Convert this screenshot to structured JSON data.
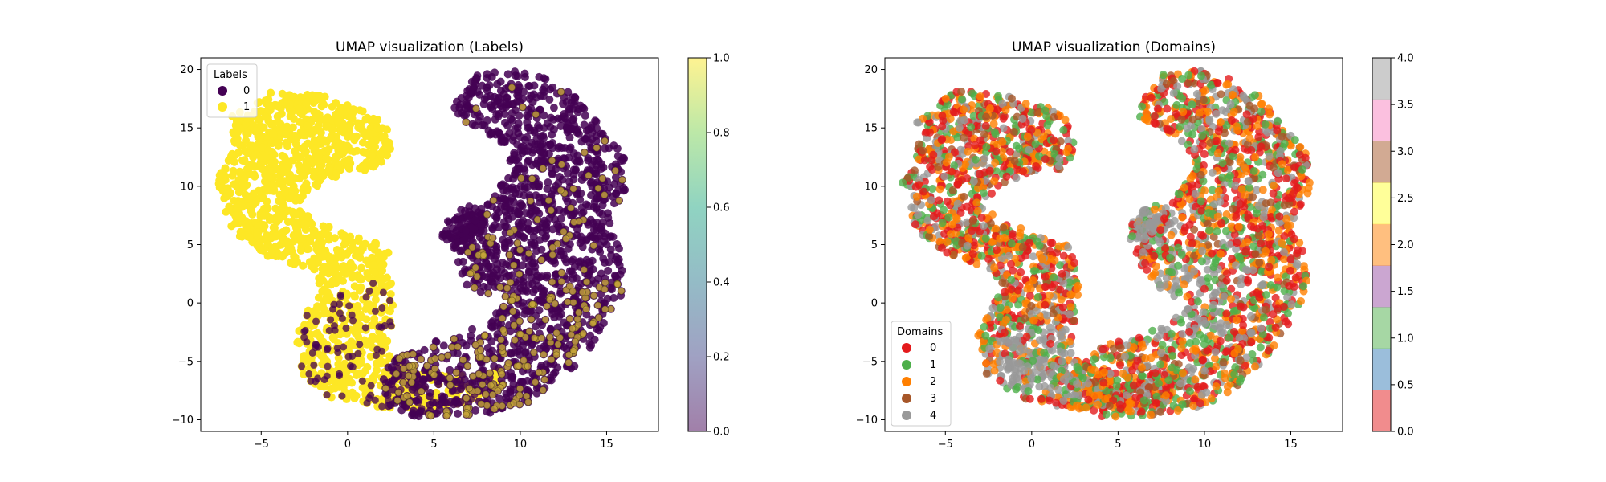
{
  "chart_data": [
    {
      "type": "scatter",
      "title": "UMAP visualization (Labels)",
      "xlabel": "",
      "ylabel": "",
      "xlim": [
        -8.5,
        18
      ],
      "ylim": [
        -11,
        21
      ],
      "xticks": [
        -5,
        0,
        5,
        10,
        15
      ],
      "yticks": [
        -10,
        -5,
        0,
        5,
        10,
        15,
        20
      ],
      "grid": false,
      "legend": {
        "title": "Labels",
        "position": "upper-left",
        "entries": [
          "0",
          "1"
        ]
      },
      "series": [
        {
          "name": "0",
          "color": "#440154",
          "region": "right-arc",
          "outline": [
            [
              6.2,
              17.5
            ],
            [
              7.5,
              19.6
            ],
            [
              9.5,
              20
            ],
            [
              11.5,
              19.3
            ],
            [
              13.3,
              17.6
            ],
            [
              14.8,
              15
            ],
            [
              16.1,
              12.5
            ],
            [
              16.1,
              9.5
            ],
            [
              15.2,
              7
            ],
            [
              15.8,
              4.5
            ],
            [
              16,
              1
            ],
            [
              15.2,
              -1
            ],
            [
              14,
              -4
            ],
            [
              12.5,
              -6.5
            ],
            [
              10.5,
              -8.5
            ],
            [
              8,
              -9.5
            ],
            [
              6,
              -9.8
            ],
            [
              4,
              -9.7
            ],
            [
              2.5,
              -9.2
            ],
            [
              1.8,
              -7.5
            ],
            [
              2.5,
              -5
            ],
            [
              4.5,
              -3.5
            ],
            [
              6.5,
              -2.8
            ],
            [
              8.5,
              -1
            ],
            [
              9.5,
              0.5
            ],
            [
              8.3,
              0.5
            ],
            [
              6.8,
              1.5
            ],
            [
              6.3,
              3
            ],
            [
              6,
              4.5
            ],
            [
              6.5,
              6
            ],
            [
              7.5,
              7
            ],
            [
              8.5,
              9.5
            ],
            [
              9.5,
              11.5
            ],
            [
              9,
              13.5
            ],
            [
              7.5,
              15
            ],
            [
              6.2,
              16
            ]
          ]
        },
        {
          "name": "0",
          "color": "#440154",
          "region": "island",
          "outline": [
            [
              5.4,
              5.5
            ],
            [
              5.8,
              7
            ],
            [
              6.8,
              8.4
            ],
            [
              7.8,
              8.2
            ],
            [
              8.1,
              7
            ],
            [
              7.6,
              5.8
            ],
            [
              6.5,
              5.2
            ]
          ]
        },
        {
          "name": "1",
          "color": "#fde725",
          "region": "left-blob",
          "outline": [
            [
              -6.7,
              16
            ],
            [
              -4.3,
              18.2
            ],
            [
              -1.5,
              17.8
            ],
            [
              1,
              16.8
            ],
            [
              2.5,
              15.3
            ],
            [
              2.6,
              13
            ],
            [
              1.8,
              11.3
            ],
            [
              0.3,
              11.4
            ],
            [
              -1.5,
              10.3
            ],
            [
              -3,
              8.5
            ],
            [
              -1.8,
              7
            ],
            [
              0.3,
              6
            ],
            [
              2.3,
              4.8
            ],
            [
              2.6,
              3
            ],
            [
              2.7,
              1.2
            ],
            [
              2.5,
              -2.5
            ],
            [
              2.2,
              -4
            ],
            [
              3.5,
              -5.8
            ],
            [
              6,
              -6.2
            ],
            [
              8.5,
              -5.7
            ],
            [
              9.5,
              -6.5
            ],
            [
              8,
              -8
            ],
            [
              6,
              -9
            ],
            [
              3.8,
              -9.4
            ],
            [
              1.5,
              -8.8
            ],
            [
              -1,
              -8.2
            ],
            [
              -2.6,
              -6.2
            ],
            [
              -3.1,
              -2.8
            ],
            [
              -2.3,
              -0.3
            ],
            [
              -1.6,
              1.4
            ],
            [
              -2.5,
              3
            ],
            [
              -4.7,
              4
            ],
            [
              -6.7,
              6.2
            ],
            [
              -7.3,
              9
            ],
            [
              -7.6,
              10.8
            ],
            [
              -6.6,
              13
            ]
          ]
        }
      ]
    },
    {
      "type": "scatter",
      "title": "UMAP visualization (Domains)",
      "xlabel": "",
      "ylabel": "",
      "xlim": [
        -8.5,
        18
      ],
      "ylim": [
        -11,
        21
      ],
      "xticks": [
        -5,
        0,
        5,
        10,
        15
      ],
      "yticks": [
        -10,
        -5,
        0,
        5,
        10,
        15,
        20
      ],
      "grid": false,
      "legend": {
        "title": "Domains",
        "position": "lower-left",
        "entries": [
          "0",
          "1",
          "2",
          "3",
          "4"
        ]
      },
      "series": [
        {
          "name": "0",
          "color": "#e41a1c"
        },
        {
          "name": "1",
          "color": "#4daf4a"
        },
        {
          "name": "2",
          "color": "#ff7f00"
        },
        {
          "name": "3",
          "color": "#a65628"
        },
        {
          "name": "4",
          "color": "#999999"
        }
      ]
    }
  ],
  "colorbars": [
    {
      "ticks": [
        "0.0",
        "0.2",
        "0.4",
        "0.6",
        "0.8",
        "1.0"
      ],
      "range": [
        0,
        1
      ],
      "colors": [
        "#440154",
        "#414487",
        "#2a788e",
        "#22a884",
        "#7ad151",
        "#fde725"
      ],
      "alpha": 0.5
    },
    {
      "ticks": [
        "0.0",
        "0.5",
        "1.0",
        "1.5",
        "2.0",
        "2.5",
        "3.0",
        "3.5",
        "4.0"
      ],
      "range": [
        0,
        4
      ],
      "colors": [
        "#e41a1c",
        "#377eb8",
        "#4daf4a",
        "#984ea3",
        "#ff7f00",
        "#ffff33",
        "#a65628",
        "#f781bf",
        "#999999"
      ],
      "alpha": 0.5
    }
  ]
}
